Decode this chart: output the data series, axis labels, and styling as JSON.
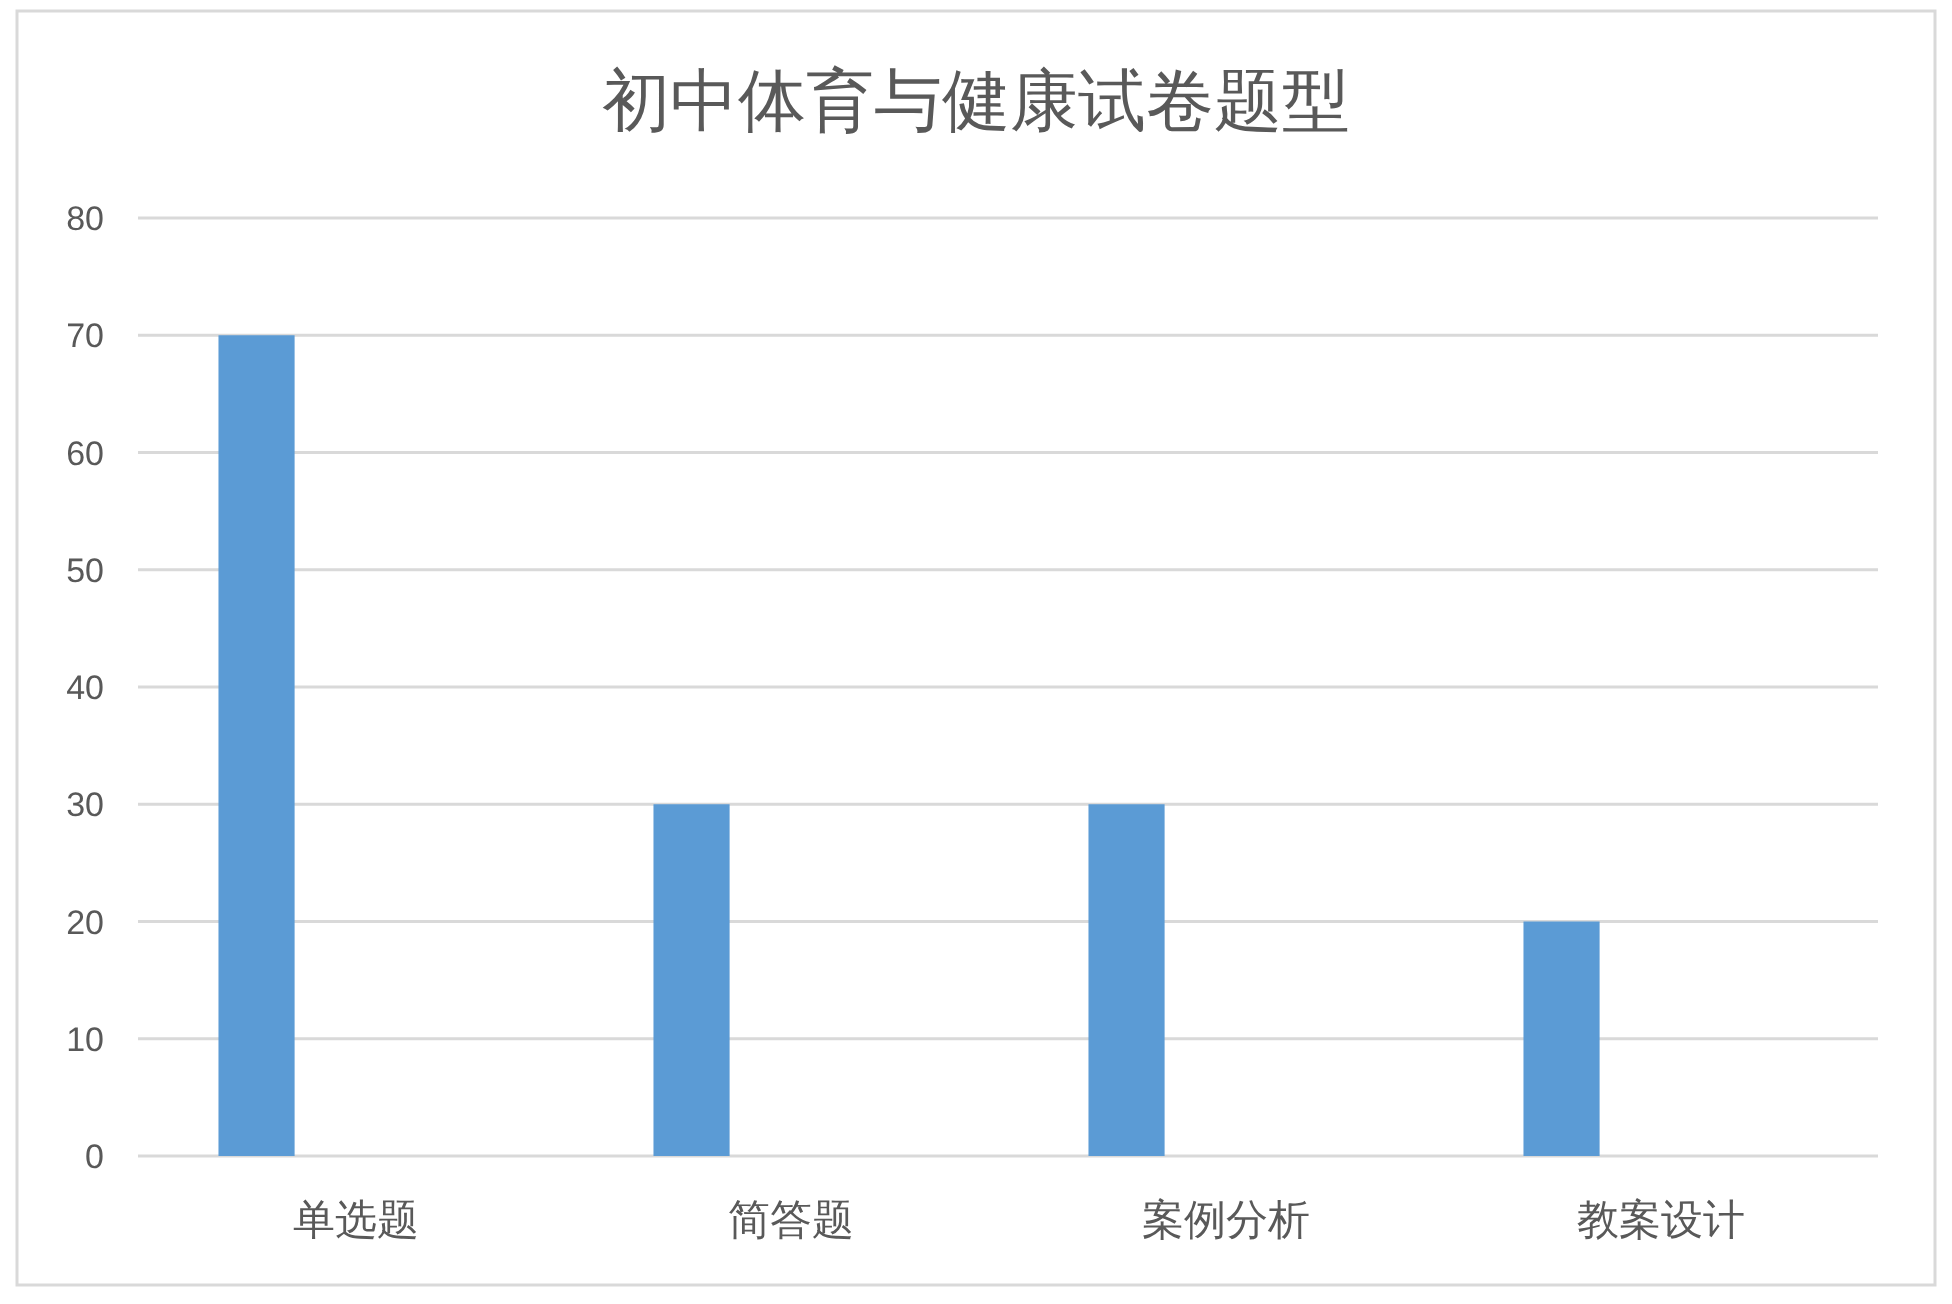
{
  "chart_data": {
    "type": "bar",
    "title": "初中体育与健康试卷题型",
    "categories": [
      "单选题",
      "简答题",
      "案例分析",
      "教案设计"
    ],
    "series": [
      {
        "color": "#5b9bd5",
        "values": [
          70,
          30,
          30,
          20
        ]
      },
      {
        "values": [
          null,
          null,
          null,
          null
        ]
      }
    ],
    "ylim": [
      0,
      80
    ],
    "yticks": [
      0,
      10,
      20,
      30,
      40,
      50,
      60,
      70,
      80
    ],
    "grid": "y"
  }
}
